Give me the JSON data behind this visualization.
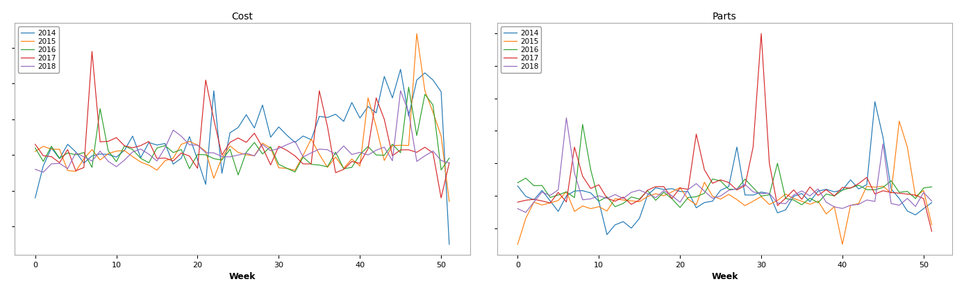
{
  "title_left": "Cost",
  "title_right": "Parts",
  "xlabel": "Week",
  "years": [
    "2014",
    "2015",
    "2016",
    "2017",
    "2018"
  ],
  "colors": [
    "#1f77b4",
    "#ff7f0e",
    "#2ca02c",
    "#d62728",
    "#9467bd"
  ],
  "n_weeks": 52,
  "figsize": [
    13.88,
    4.22
  ],
  "dpi": 100,
  "legend_loc": "upper left",
  "xticks": [
    0,
    10,
    20,
    30,
    40,
    50
  ],
  "background_color": "#ffffff",
  "seed_cost": 123,
  "seed_parts": 456
}
